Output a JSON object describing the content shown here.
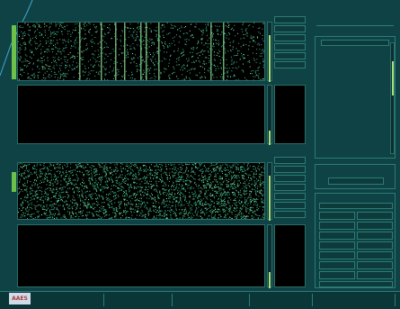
{
  "top_display": {
    "header": "",
    "header_right": ""
  },
  "bottom_display": {
    "header": "",
    "header_right": ""
  },
  "top_buttons": [
    "",
    "",
    "",
    "",
    "",
    ""
  ],
  "bottom_buttons": [
    "",
    "",
    "",
    "",
    "",
    "",
    ""
  ],
  "right_panel": {
    "header_title": "",
    "header_ticks": "",
    "section_title": "",
    "sub_title": "",
    "status_line": "",
    "status_box": "",
    "controls_title": "",
    "controls_subtitle": "",
    "grid": [
      [
        "",
        ""
      ],
      [
        "",
        ""
      ],
      [
        "",
        ""
      ],
      [
        "",
        ""
      ],
      [
        "",
        ""
      ],
      [
        "",
        ""
      ],
      [
        "",
        ""
      ]
    ],
    "footer_cell": ""
  },
  "bottom_bar": {
    "logo": "AAES",
    "buttons": [
      "",
      "",
      "",
      "",
      ""
    ]
  },
  "colors": {
    "background": "#0f4244",
    "raster_dot": "#3fbf8a",
    "raster_hot": "#9bf0a0",
    "slider": "#7fc35a"
  }
}
